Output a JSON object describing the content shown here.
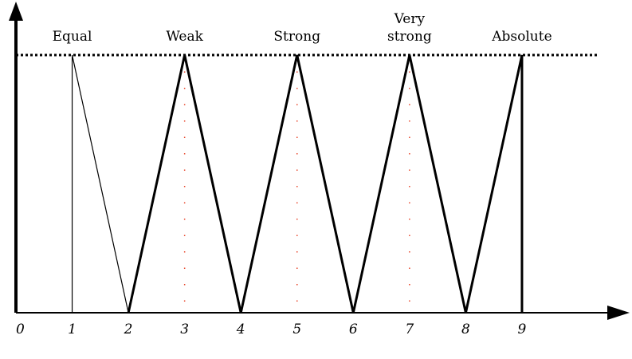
{
  "chart_data": {
    "type": "line",
    "xlim": [
      0,
      10.9
    ],
    "xticks": [
      0,
      1,
      2,
      3,
      4,
      5,
      6,
      7,
      8,
      9
    ],
    "ylim": [
      0,
      1.2
    ],
    "reference_line": 1,
    "guides": [
      3,
      5,
      7
    ],
    "color": "#000000",
    "guide_color": "#e8452a",
    "series": [
      {
        "name": "Equal",
        "x": [
          1,
          1,
          2
        ],
        "values": [
          0,
          1,
          0
        ]
      },
      {
        "name": "Weak",
        "x": [
          2,
          3,
          4
        ],
        "values": [
          0,
          1,
          0
        ]
      },
      {
        "name": "Strong",
        "x": [
          4,
          5,
          6
        ],
        "values": [
          0,
          1,
          0
        ]
      },
      {
        "name": "Very strong",
        "x": [
          6,
          7,
          8
        ],
        "values": [
          0,
          1,
          0
        ]
      },
      {
        "name": "Absolute",
        "x": [
          8,
          9,
          9
        ],
        "values": [
          0,
          1,
          0
        ]
      }
    ]
  }
}
